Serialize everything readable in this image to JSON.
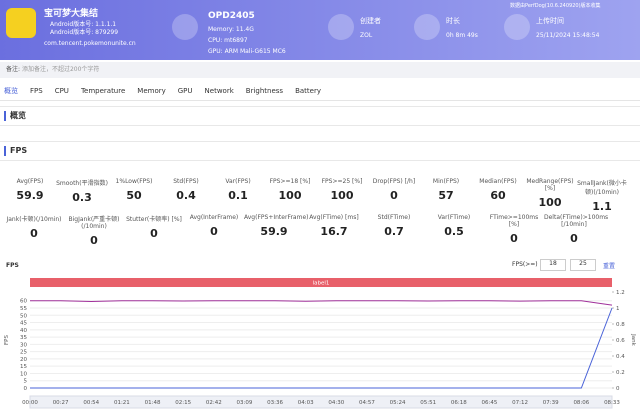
{
  "header": {
    "app_name": "宝可梦大集结",
    "android_version": "Android版本号: 1.1.1.1",
    "android_build": "Android版本号: 879299",
    "package": "com.tencent.pokemonunite.cn",
    "device": "OPD2405",
    "memory": "Memory: 11.4G",
    "cpu": "CPU: mt6897",
    "gpu": "GPU: ARM Mali-G615 MC6",
    "creator_label": "创建者",
    "creator": "ZOL",
    "duration_label": "时长",
    "duration": "0h 8m 49s",
    "upload_label": "上传时间",
    "upload_time": "25/11/2024 15:48:54",
    "source_note": "数据由PerfDog(10.6.240920)版本收集"
  },
  "note": {
    "label": "备注:",
    "placeholder": "添加备注，不超过200个字符"
  },
  "tabs": [
    "概览",
    "FPS",
    "CPU",
    "Temperature",
    "Memory",
    "GPU",
    "Network",
    "Brightness",
    "Battery"
  ],
  "sections": [
    "概览",
    "FPS"
  ],
  "metrics": [
    [
      {
        "label": "Avg(FPS)",
        "value": 59.9
      },
      {
        "label": "Smooth(平滑指数)",
        "value": 0.3
      },
      {
        "label": "1%Low(FPS)",
        "value": 50
      },
      {
        "label": "Std(FPS)",
        "value": 0.4
      },
      {
        "label": "Var(FPS)",
        "value": 0.1
      },
      {
        "label": "FPS>=18 [%]",
        "value": 100
      },
      {
        "label": "FPS>=25 [%]",
        "value": 100
      },
      {
        "label": "Drop(FPS) [/h]",
        "value": 0
      },
      {
        "label": "Min(FPS)",
        "value": 57
      },
      {
        "label": "Median(FPS)",
        "value": 60
      },
      {
        "label": "MedRange(FPS)[%]",
        "value": 100
      },
      {
        "label": "SmallJank(微小卡顿)(/10min)",
        "value": 1.1
      }
    ],
    [
      {
        "label": "Jank(卡顿)(/10min)",
        "value": 0
      },
      {
        "label": "BigJank(严重卡顿)(/10min)",
        "value": 0
      },
      {
        "label": "Stutter(卡顿率) [%]",
        "value": 0
      },
      {
        "label": "Avg(InterFrame)",
        "value": 0
      },
      {
        "label": "Avg(FPS+InterFrame)",
        "value": 59.9
      },
      {
        "label": "Avg(FTime) [ms]",
        "value": 16.7
      },
      {
        "label": "Std(FTime)",
        "value": 0.7
      },
      {
        "label": "Var(FTime)",
        "value": 0.5
      },
      {
        "label": "FTime>=100ms [%]",
        "value": 0
      },
      {
        "label": "Delta(FTime)>100ms [/10min]",
        "value": 0
      }
    ]
  ],
  "chart": {
    "type": "line",
    "title": "FPS",
    "threshold_label": "FPS(>=)",
    "thresholds": [
      18,
      25
    ],
    "reset": "重置",
    "band_label": "label1",
    "y_axis_label": "FPS",
    "y2_axis_label": "Jank",
    "ylim": [
      0,
      66
    ],
    "yticks": [
      0,
      5,
      10,
      15,
      20,
      25,
      30,
      35,
      40,
      45,
      50,
      55,
      60
    ],
    "y2lim": [
      0,
      1.2
    ],
    "y2ticks": [
      0,
      0.2,
      0.4,
      0.6,
      0.8,
      1,
      1.2
    ],
    "x": [
      "00:00",
      "00:27",
      "00:54",
      "01:21",
      "01:48",
      "02:15",
      "02:42",
      "03:09",
      "03:36",
      "04:03",
      "04:30",
      "04:57",
      "05:24",
      "05:51",
      "06:18",
      "06:45",
      "07:12",
      "07:39",
      "08:06",
      "08:33"
    ],
    "series": [
      {
        "name": "FPS",
        "color": "#a0309a",
        "values": [
          60,
          60,
          59.5,
          60,
          60,
          59.8,
          60,
          60,
          60,
          59.6,
          60,
          60,
          60,
          59.8,
          60,
          60,
          59.7,
          60,
          60,
          57
        ]
      },
      {
        "name": "Jank",
        "color": "#4a63d8",
        "axis": "y2",
        "values": [
          0,
          0,
          0,
          0,
          0,
          0,
          0,
          0,
          0,
          0,
          0,
          0,
          0,
          0,
          0,
          0,
          0,
          0,
          0,
          1
        ]
      }
    ]
  }
}
